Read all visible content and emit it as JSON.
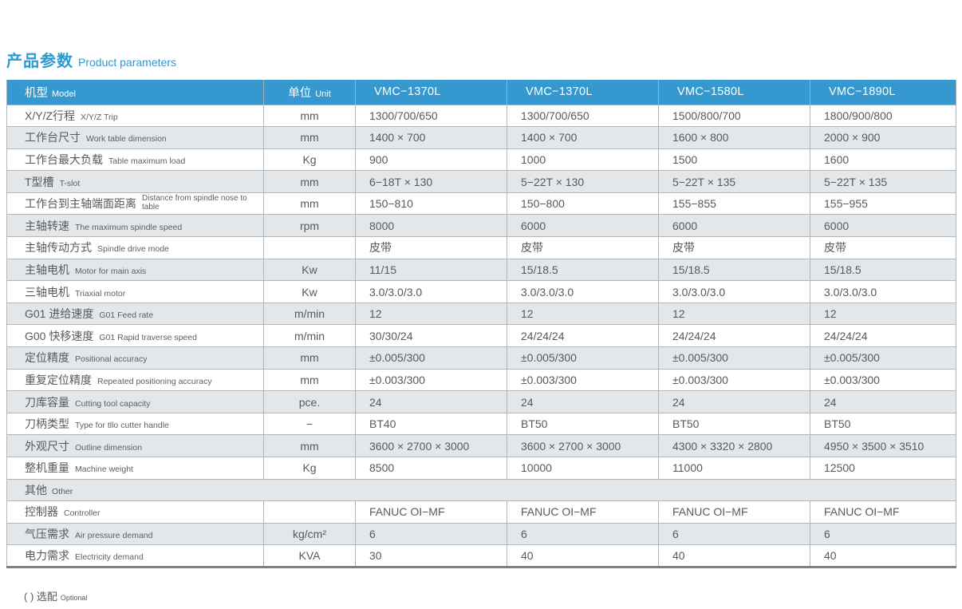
{
  "page": {
    "title_zh": "产品参数",
    "title_en": "Product parameters",
    "footnote_zh": "( ) 选配",
    "footnote_en": "Optional"
  },
  "colors": {
    "accent_blue": "#2b9ad1",
    "header_bg": "#3598cf",
    "header_text": "#ffffff",
    "row_alt_bg": "#e4e7e9",
    "body_text": "#58595b",
    "border": "#b2b6b9",
    "bottom_border": "#7d8184"
  },
  "table": {
    "header": {
      "model_zh": "机型",
      "model_en": "Model",
      "unit_zh": "单位",
      "unit_en": "Unit",
      "models": [
        "VMC−1370L",
        "VMC−1370L",
        "VMC−1580L",
        "VMC−1890L"
      ]
    },
    "rows": [
      {
        "zh": "X/Y/Z行程",
        "en": "X/Y/Z Trip",
        "unit": "mm",
        "values": [
          "1300/700/650",
          "1300/700/650",
          "1500/800/700",
          "1800/900/800"
        ]
      },
      {
        "zh": "工作台尺寸",
        "en": "Work table dimension",
        "unit": "mm",
        "values": [
          "1400 × 700",
          "1400 × 700",
          "1600 × 800",
          "2000 × 900"
        ]
      },
      {
        "zh": "工作台最大负载",
        "en": "Table maximum load",
        "unit": "Kg",
        "values": [
          "900",
          "1000",
          "1500",
          "1600"
        ]
      },
      {
        "zh": "T型槽",
        "en": "T-slot",
        "unit": "mm",
        "values": [
          "6−18T × 130",
          "5−22T × 130",
          "5−22T × 135",
          "5−22T × 135"
        ]
      },
      {
        "zh": "工作台到主轴端面距离",
        "en": "Distance from spindle nose to table",
        "en_wrap": true,
        "unit": "mm",
        "values": [
          "150−810",
          "150−800",
          "155−855",
          "155−955"
        ]
      },
      {
        "zh": "主轴转速",
        "en": "The maximum spindle speed",
        "unit": "rpm",
        "values": [
          "8000",
          "6000",
          "6000",
          "6000"
        ]
      },
      {
        "zh": "主轴传动方式",
        "en": "Spindle drive mode",
        "unit": "",
        "values": [
          "皮带",
          "皮带",
          "皮带",
          "皮带"
        ]
      },
      {
        "zh": "主轴电机",
        "en": "Motor for main axis",
        "unit": "Kw",
        "values": [
          "11/15",
          "15/18.5",
          "15/18.5",
          "15/18.5"
        ]
      },
      {
        "zh": "三轴电机",
        "en": "Triaxial motor",
        "unit": "Kw",
        "values": [
          "3.0/3.0/3.0",
          "3.0/3.0/3.0",
          "3.0/3.0/3.0",
          "3.0/3.0/3.0"
        ]
      },
      {
        "zh": "G01 进给速度",
        "en": "G01 Feed rate",
        "unit": "m/min",
        "values": [
          "12",
          "12",
          "12",
          "12"
        ]
      },
      {
        "zh": "G00 快移速度",
        "en": "G01 Rapid traverse speed",
        "unit": "m/min",
        "values": [
          "30/30/24",
          "24/24/24",
          "24/24/24",
          "24/24/24"
        ]
      },
      {
        "zh": "定位精度",
        "en": "Positional accuracy",
        "unit": "mm",
        "values": [
          "±0.005/300",
          "±0.005/300",
          "±0.005/300",
          "±0.005/300"
        ]
      },
      {
        "zh": "重复定位精度",
        "en": "Repeated positioning accuracy",
        "unit": "mm",
        "values": [
          "±0.003/300",
          "±0.003/300",
          "±0.003/300",
          "±0.003/300"
        ]
      },
      {
        "zh": "刀库容量",
        "en": "Cutting tool capacity",
        "unit": "pce.",
        "values": [
          "24",
          "24",
          "24",
          "24"
        ]
      },
      {
        "zh": "刀柄类型",
        "en": "Type for tllo cutter handle",
        "unit": "−",
        "values": [
          "BT40",
          "BT50",
          "BT50",
          "BT50"
        ]
      },
      {
        "zh": "外观尺寸",
        "en": "Outline dimension",
        "unit": "mm",
        "values": [
          "3600 × 2700 × 3000",
          "3600 × 2700 × 3000",
          "4300 × 3320 × 2800",
          "4950 × 3500 × 3510"
        ]
      },
      {
        "zh": "整机重量",
        "en": "Machine weight",
        "unit": "Kg",
        "values": [
          "8500",
          "10000",
          "11000",
          "12500"
        ]
      },
      {
        "type": "section",
        "zh": "其他",
        "en": "Other"
      },
      {
        "zh": "控制器",
        "en": "Controller",
        "unit": "",
        "values": [
          "FANUC OI−MF",
          "FANUC OI−MF",
          "FANUC OI−MF",
          "FANUC OI−MF"
        ]
      },
      {
        "zh": "气压需求",
        "en": "Air pressure demand",
        "unit": "kg/cm²",
        "values": [
          "6",
          "6",
          "6",
          "6"
        ]
      },
      {
        "zh": "电力需求",
        "en": "Electricity demand",
        "unit": "KVA",
        "values": [
          "30",
          "40",
          "40",
          "40"
        ]
      }
    ]
  }
}
